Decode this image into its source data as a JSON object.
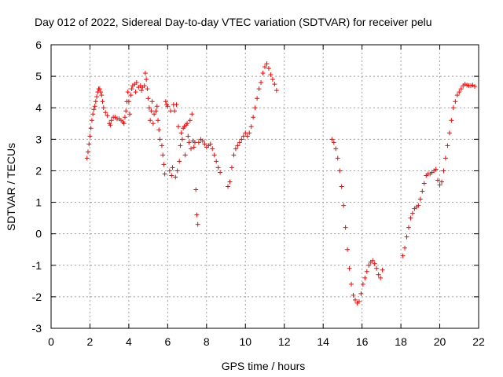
{
  "chart_data": {
    "type": "scatter",
    "title": "Day 012 of 2022, Sidereal Day-to-day VTEC variation (SDTVAR) for receiver pelu",
    "xlabel": "GPS time / hours",
    "ylabel": "SDTVAR / TECUs",
    "xlim": [
      0,
      22
    ],
    "ylim": [
      -3,
      6
    ],
    "xticks": [
      "0",
      "2",
      "4",
      "6",
      "8",
      "10",
      "12",
      "14",
      "16",
      "18",
      "20",
      "22"
    ],
    "yticks": [
      "-3",
      "-2",
      "-1",
      "0",
      "1",
      "2",
      "3",
      "4",
      "5",
      "6"
    ],
    "grid": true,
    "marker": "+",
    "color": "#ff0000",
    "series": [
      {
        "name": "SDTVAR",
        "points": [
          [
            1.85,
            2.4
          ],
          [
            1.9,
            2.6
          ],
          [
            1.95,
            2.85
          ],
          [
            2.0,
            3.1
          ],
          [
            2.05,
            3.35
          ],
          [
            2.1,
            3.6
          ],
          [
            2.15,
            3.8
          ],
          [
            2.2,
            3.95
          ],
          [
            2.25,
            4.05
          ],
          [
            2.3,
            4.2
          ],
          [
            2.35,
            4.35
          ],
          [
            2.4,
            4.5
          ],
          [
            2.45,
            4.6
          ],
          [
            2.5,
            4.6
          ],
          [
            2.55,
            4.5
          ],
          [
            2.6,
            4.4
          ],
          [
            2.65,
            4.2
          ],
          [
            2.7,
            4.0
          ],
          [
            2.8,
            3.85
          ],
          [
            2.9,
            3.75
          ],
          [
            3.0,
            3.5
          ],
          [
            3.05,
            3.45
          ],
          [
            3.1,
            3.6
          ],
          [
            3.2,
            3.7
          ],
          [
            3.3,
            3.7
          ],
          [
            3.4,
            3.65
          ],
          [
            3.5,
            3.65
          ],
          [
            3.6,
            3.6
          ],
          [
            3.7,
            3.55
          ],
          [
            3.75,
            3.5
          ],
          [
            3.8,
            3.7
          ],
          [
            3.85,
            3.9
          ],
          [
            3.9,
            4.2
          ],
          [
            3.95,
            4.5
          ],
          [
            4.0,
            4.2
          ],
          [
            4.05,
            3.8
          ],
          [
            4.1,
            4.4
          ],
          [
            4.15,
            4.6
          ],
          [
            4.2,
            4.7
          ],
          [
            4.3,
            4.75
          ],
          [
            4.35,
            4.5
          ],
          [
            4.4,
            4.8
          ],
          [
            4.5,
            4.65
          ],
          [
            4.6,
            4.7
          ],
          [
            4.65,
            4.55
          ],
          [
            4.7,
            4.65
          ],
          [
            4.8,
            4.7
          ],
          [
            4.85,
            5.1
          ],
          [
            4.9,
            4.9
          ],
          [
            4.95,
            4.6
          ],
          [
            5.0,
            4.3
          ],
          [
            5.05,
            4.0
          ],
          [
            5.1,
            3.6
          ],
          [
            5.15,
            3.9
          ],
          [
            5.2,
            4.2
          ],
          [
            5.25,
            3.5
          ],
          [
            5.3,
            3.8
          ],
          [
            5.4,
            3.9
          ],
          [
            5.45,
            4.05
          ],
          [
            5.5,
            3.6
          ],
          [
            5.55,
            3.3
          ],
          [
            5.6,
            3.0
          ],
          [
            5.7,
            2.8
          ],
          [
            5.75,
            2.5
          ],
          [
            5.8,
            2.2
          ],
          [
            5.85,
            1.9
          ],
          [
            5.9,
            4.2
          ],
          [
            5.95,
            4.1
          ],
          [
            6.0,
            4.05
          ],
          [
            6.1,
            2.0
          ],
          [
            6.15,
            3.9
          ],
          [
            6.2,
            1.85
          ],
          [
            6.25,
            2.1
          ],
          [
            6.3,
            4.1
          ],
          [
            6.35,
            3.9
          ],
          [
            6.4,
            1.8
          ],
          [
            6.45,
            4.1
          ],
          [
            6.5,
            2.0
          ],
          [
            6.55,
            3.4
          ],
          [
            6.6,
            2.3
          ],
          [
            6.65,
            2.8
          ],
          [
            6.7,
            3.2
          ],
          [
            6.75,
            3.0
          ],
          [
            6.8,
            3.35
          ],
          [
            6.85,
            3.4
          ],
          [
            6.9,
            2.5
          ],
          [
            6.95,
            3.45
          ],
          [
            7.0,
            3.5
          ],
          [
            7.05,
            3.1
          ],
          [
            7.1,
            2.9
          ],
          [
            7.15,
            3.6
          ],
          [
            7.2,
            2.7
          ],
          [
            7.25,
            3.8
          ],
          [
            7.3,
            2.95
          ],
          [
            7.35,
            2.75
          ],
          [
            7.4,
            2.9
          ],
          [
            7.45,
            1.4
          ],
          [
            7.5,
            0.6
          ],
          [
            7.55,
            0.3
          ],
          [
            7.6,
            2.9
          ],
          [
            7.7,
            3.0
          ],
          [
            7.8,
            2.95
          ],
          [
            7.9,
            2.85
          ],
          [
            8.0,
            2.75
          ],
          [
            8.1,
            2.8
          ],
          [
            8.2,
            2.85
          ],
          [
            8.3,
            2.7
          ],
          [
            8.4,
            2.5
          ],
          [
            8.5,
            2.3
          ],
          [
            8.6,
            2.1
          ],
          [
            8.7,
            1.95
          ],
          [
            9.1,
            1.5
          ],
          [
            9.2,
            1.65
          ],
          [
            9.3,
            2.1
          ],
          [
            9.4,
            2.5
          ],
          [
            9.5,
            2.7
          ],
          [
            9.6,
            2.8
          ],
          [
            9.7,
            2.9
          ],
          [
            9.8,
            3.0
          ],
          [
            9.9,
            3.1
          ],
          [
            10.0,
            3.2
          ],
          [
            10.1,
            3.1
          ],
          [
            10.2,
            3.2
          ],
          [
            10.3,
            3.4
          ],
          [
            10.4,
            3.7
          ],
          [
            10.5,
            4.0
          ],
          [
            10.6,
            4.3
          ],
          [
            10.7,
            4.6
          ],
          [
            10.8,
            4.8
          ],
          [
            10.9,
            5.1
          ],
          [
            11.0,
            5.3
          ],
          [
            11.1,
            5.4
          ],
          [
            11.2,
            5.25
          ],
          [
            11.3,
            5.05
          ],
          [
            11.4,
            4.9
          ],
          [
            11.5,
            4.75
          ],
          [
            11.6,
            4.55
          ],
          [
            14.45,
            3.0
          ],
          [
            14.55,
            2.9
          ],
          [
            14.65,
            2.7
          ],
          [
            14.75,
            2.4
          ],
          [
            14.85,
            2.0
          ],
          [
            14.95,
            1.5
          ],
          [
            15.05,
            0.9
          ],
          [
            15.15,
            0.2
          ],
          [
            15.25,
            -0.5
          ],
          [
            15.35,
            -1.1
          ],
          [
            15.45,
            -1.6
          ],
          [
            15.55,
            -1.95
          ],
          [
            15.65,
            -2.1
          ],
          [
            15.75,
            -2.2
          ],
          [
            15.85,
            -2.15
          ],
          [
            15.95,
            -1.9
          ],
          [
            16.05,
            -1.6
          ],
          [
            16.15,
            -1.4
          ],
          [
            16.25,
            -1.2
          ],
          [
            16.35,
            -1.0
          ],
          [
            16.45,
            -0.9
          ],
          [
            16.55,
            -0.85
          ],
          [
            16.65,
            -0.95
          ],
          [
            16.75,
            -1.1
          ],
          [
            16.85,
            -1.3
          ],
          [
            16.95,
            -1.4
          ],
          [
            17.05,
            -1.15
          ],
          [
            18.1,
            -0.7
          ],
          [
            18.2,
            -0.45
          ],
          [
            18.3,
            -0.1
          ],
          [
            18.4,
            0.2
          ],
          [
            18.5,
            0.5
          ],
          [
            18.6,
            0.65
          ],
          [
            18.7,
            0.8
          ],
          [
            18.8,
            0.85
          ],
          [
            18.9,
            0.9
          ],
          [
            19.0,
            1.1
          ],
          [
            19.1,
            1.35
          ],
          [
            19.2,
            1.6
          ],
          [
            19.3,
            1.85
          ],
          [
            19.4,
            1.9
          ],
          [
            19.5,
            1.9
          ],
          [
            19.6,
            1.95
          ],
          [
            19.7,
            2.0
          ],
          [
            19.8,
            2.05
          ],
          [
            19.9,
            1.7
          ],
          [
            20.0,
            1.55
          ],
          [
            20.1,
            1.65
          ],
          [
            20.2,
            2.0
          ],
          [
            20.3,
            2.4
          ],
          [
            20.4,
            2.8
          ],
          [
            20.5,
            3.2
          ],
          [
            20.6,
            3.6
          ],
          [
            20.7,
            4.0
          ],
          [
            20.8,
            4.2
          ],
          [
            20.9,
            4.4
          ],
          [
            21.0,
            4.5
          ],
          [
            21.1,
            4.6
          ],
          [
            21.2,
            4.7
          ],
          [
            21.3,
            4.75
          ],
          [
            21.4,
            4.72
          ],
          [
            21.5,
            4.7
          ],
          [
            21.6,
            4.7
          ],
          [
            21.7,
            4.72
          ],
          [
            21.8,
            4.68
          ]
        ]
      }
    ]
  }
}
